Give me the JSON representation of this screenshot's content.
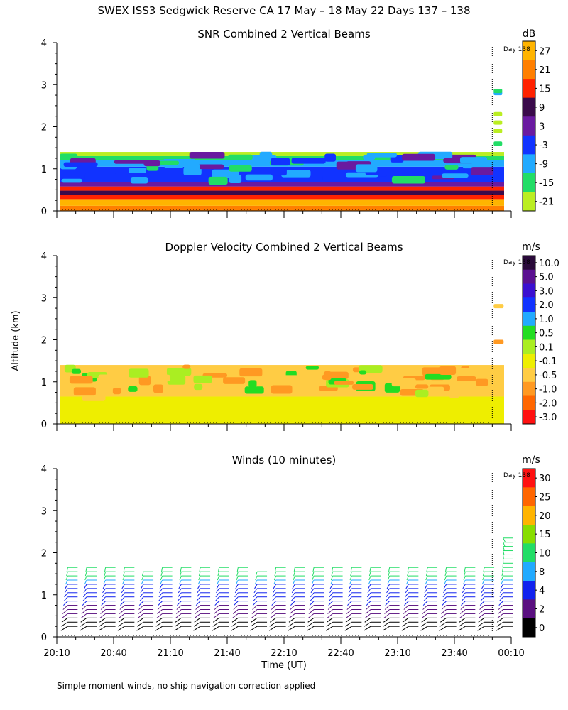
{
  "figure": {
    "title": "SWEX ISS3 Sedgwick Reserve CA  17 May – 18 May 22 Days 137 – 138",
    "footnote": "Simple moment winds, no ship navigation correction applied",
    "ylabel": "Altitude (km)",
    "xlabel": "Time (UT)",
    "day_marker_label": "Day 138"
  },
  "chart_data": [
    {
      "type": "heatmap",
      "title": "SNR Combined 2 Vertical Beams",
      "xlabel": "Time (UT)",
      "ylabel": "Altitude (km)",
      "x_ticks": [
        "20:10",
        "20:40",
        "21:10",
        "21:40",
        "22:10",
        "22:40",
        "23:10",
        "23:40",
        "00:10"
      ],
      "y_ticks": [
        0,
        1,
        2,
        3,
        4
      ],
      "xlim_hours": [
        20.1667,
        24.1667
      ],
      "ylim": [
        0,
        4
      ],
      "colorbar": {
        "unit": "dB",
        "labels": [
          27,
          21,
          15,
          9,
          3,
          -3,
          -9,
          -15,
          -21
        ],
        "colors": [
          "#ffb400",
          "#ff7f00",
          "#ff2200",
          "#3a0a4a",
          "#6a1aa0",
          "#1133ff",
          "#22aaff",
          "#22dd66",
          "#bbee22"
        ]
      },
      "layers_km": [
        {
          "from": 0.0,
          "to": 0.12,
          "snr_db": 21
        },
        {
          "from": 0.12,
          "to": 0.28,
          "snr_db": 27
        },
        {
          "from": 0.28,
          "to": 0.38,
          "snr_db": 15
        },
        {
          "from": 0.38,
          "to": 0.48,
          "snr_db": 9
        },
        {
          "from": 0.48,
          "to": 0.58,
          "snr_db": 15
        },
        {
          "from": 0.58,
          "to": 0.68,
          "snr_db": 3
        },
        {
          "from": 0.68,
          "to": 1.05,
          "snr_db": -3
        },
        {
          "from": 1.05,
          "to": 1.2,
          "snr_db": -9
        },
        {
          "from": 1.2,
          "to": 1.3,
          "snr_db": -15
        },
        {
          "from": 1.3,
          "to": 1.4,
          "snr_db": -21
        }
      ],
      "notes": "Echo top near 1.4 km; after 00:00 sparse returns up to ~2.9 km"
    },
    {
      "type": "heatmap",
      "title": "Doppler Velocity Combined 2 Vertical Beams",
      "xlabel": "Time (UT)",
      "ylabel": "Altitude (km)",
      "y_ticks": [
        0,
        1,
        2,
        3,
        4
      ],
      "ylim": [
        0,
        4
      ],
      "colorbar": {
        "unit": "m/s",
        "labels": [
          "10.0",
          "5.0",
          "3.0",
          "2.0",
          "1.0",
          "0.5",
          "0.1",
          "-0.1",
          "-0.5",
          "-1.0",
          "-2.0",
          "-3.0"
        ],
        "colors": [
          "#2a0a3a",
          "#5a1090",
          "#3a10d0",
          "#1133ff",
          "#22aaff",
          "#22dd22",
          "#aaee22",
          "#eeee00",
          "#ffcc44",
          "#ff9922",
          "#ff6600",
          "#ff1111"
        ]
      },
      "layers_km": [
        {
          "from": 0.0,
          "to": 0.65,
          "velocity_ms": -0.1
        },
        {
          "from": 0.65,
          "to": 1.4,
          "velocity_ms": -0.5
        }
      ],
      "notes": "Mostly -0.1 to -1.0 m/s below 1.4 km; patches near 2.8 and 1.9 km after 00:00"
    },
    {
      "type": "scatter",
      "title": "Winds (10 minutes)",
      "xlabel": "Time (UT)",
      "ylabel": "Altitude (km)",
      "y_ticks": [
        0,
        1,
        2,
        3,
        4
      ],
      "ylim": [
        0,
        4
      ],
      "colorbar": {
        "unit": "m/s",
        "labels": [
          30,
          25,
          20,
          15,
          10,
          8,
          4,
          2,
          0
        ],
        "colors": [
          "#ff1111",
          "#ff6600",
          "#ffb400",
          "#88dd00",
          "#22dd66",
          "#22aaff",
          "#1122ee",
          "#5a1080",
          "#000000"
        ]
      },
      "profile_times_hours": [
        20.25,
        20.417,
        20.583,
        20.75,
        20.917,
        21.083,
        21.25,
        21.417,
        21.583,
        21.75,
        21.917,
        22.083,
        22.25,
        22.417,
        22.583,
        22.75,
        22.917,
        23.083,
        23.25,
        23.417,
        23.583,
        23.75,
        23.917,
        24.083
      ],
      "wind_top_km": [
        1.7,
        1.7,
        1.7,
        1.7,
        1.6,
        1.7,
        1.7,
        1.7,
        1.7,
        1.7,
        1.6,
        1.7,
        1.7,
        1.7,
        1.7,
        1.7,
        1.7,
        1.7,
        1.7,
        1.7,
        1.7,
        1.7,
        1.7,
        2.35
      ],
      "notes": "Barbs between 0.2 and 1.7 km; speeds increase with height"
    }
  ]
}
